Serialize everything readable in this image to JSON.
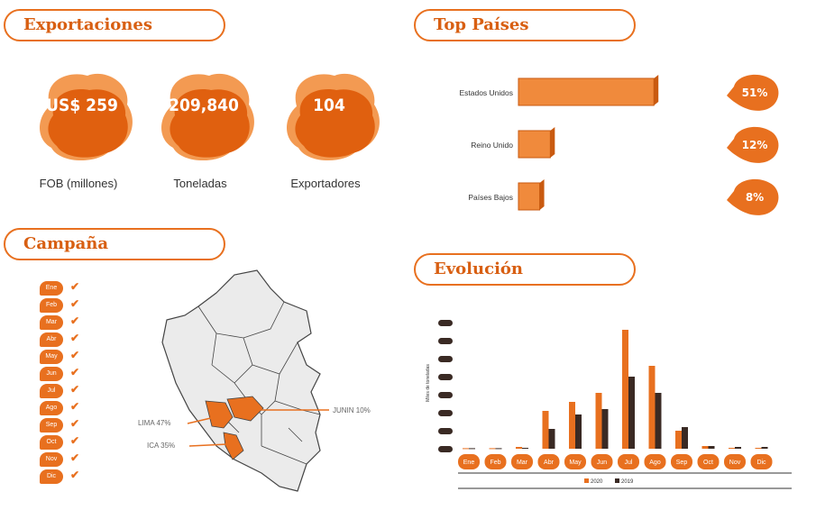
{
  "sections": {
    "exportaciones": "Exportaciones",
    "top_paises": "Top Países",
    "campana": "Campaña",
    "evolucion": "Evolución"
  },
  "kpis": [
    {
      "value": "US$ 259",
      "caption": "FOB (millones)"
    },
    {
      "value": "209,840",
      "caption": "Toneladas"
    },
    {
      "value": "104",
      "caption": "Exportadores"
    }
  ],
  "campana": {
    "months": [
      "Ene",
      "Feb",
      "Mar",
      "Abr",
      "May",
      "Jun",
      "Jul",
      "Ago",
      "Sep",
      "Oct",
      "Nov",
      "Dic"
    ],
    "check": "✔",
    "regions": [
      "LIMA 47%",
      "ICA 35%",
      "JUNIN 10%"
    ]
  },
  "colors": {
    "accent": "#e8701f",
    "accent_light": "#f39a52",
    "dark": "#3a2a24"
  },
  "chart_data": [
    {
      "type": "bar",
      "title": "Top Países",
      "categories": [
        "Estados Unidos",
        "Reino Unido",
        "Países Bajos"
      ],
      "values": [
        51,
        12,
        8
      ],
      "value_labels": [
        "51%",
        "12%",
        "8%"
      ],
      "ylim": [
        0,
        55
      ]
    },
    {
      "type": "bar",
      "title": "Evolución",
      "ylabel": "Miles de toneladas",
      "categories": [
        "Ene",
        "Feb",
        "Mar",
        "Abr",
        "May",
        "Jun",
        "Jul",
        "Ago",
        "Sep",
        "Oct",
        "Nov",
        "Dic"
      ],
      "series": [
        {
          "name": "2020",
          "values": [
            0.3,
            0.3,
            1,
            21,
            26,
            31,
            66,
            46,
            10,
            1.5,
            0.5,
            0.5
          ]
        },
        {
          "name": "2019",
          "values": [
            0.3,
            0.3,
            0.5,
            11,
            19,
            22,
            40,
            31,
            12,
            1.5,
            1,
            1
          ]
        }
      ],
      "ylim": [
        0,
        70
      ]
    }
  ]
}
